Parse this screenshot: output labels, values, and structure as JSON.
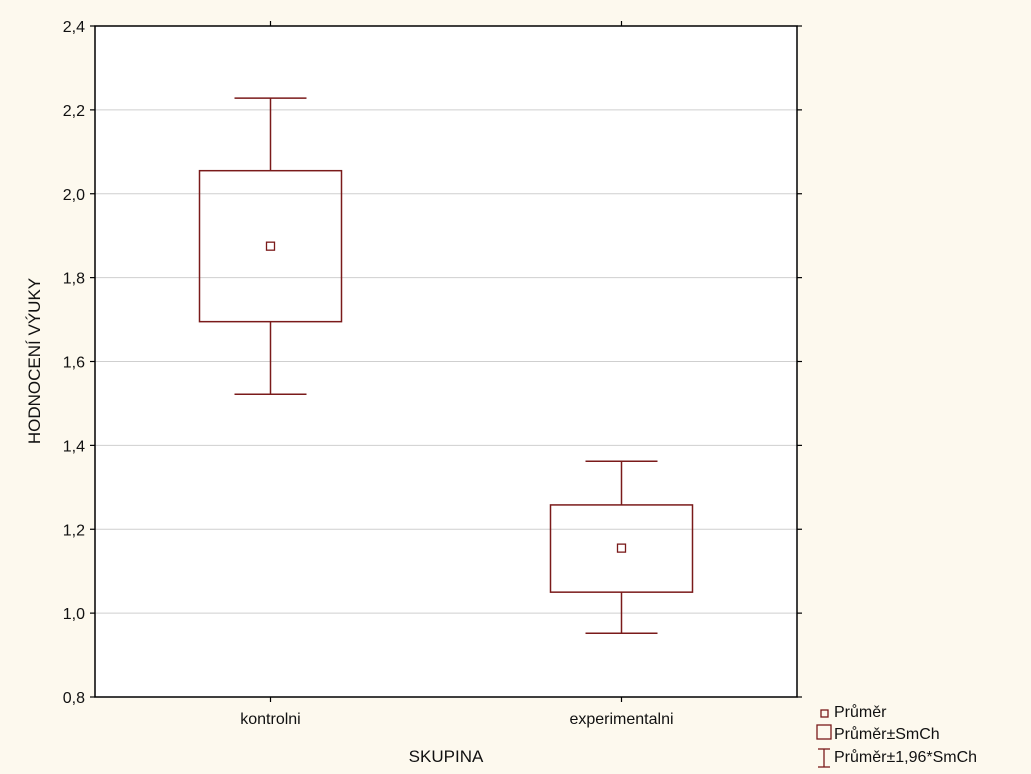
{
  "chart_data": {
    "type": "box",
    "xlabel": "SKUPINA",
    "ylabel": "HODNOCENÍ VÝUKY",
    "ylim": [
      0.8,
      2.4
    ],
    "y_ticks": [
      0.8,
      1.0,
      1.2,
      1.4,
      1.6,
      1.8,
      2.0,
      2.2,
      2.4
    ],
    "y_tick_labels": [
      "0,8",
      "1,0",
      "1,2",
      "1,4",
      "1,6",
      "1,8",
      "2,0",
      "2,2",
      "2,4"
    ],
    "grid": true,
    "categories": [
      "kontrolni",
      "experimentalni"
    ],
    "groups": [
      {
        "category": "kontrolni",
        "mean": 1.875,
        "mean_minus_se": 1.695,
        "mean_plus_se": 2.055,
        "mean_minus_1_96se": 1.522,
        "mean_plus_1_96se": 2.228
      },
      {
        "category": "experimentalni",
        "mean": 1.155,
        "mean_minus_se": 1.05,
        "mean_plus_se": 1.258,
        "mean_minus_1_96se": 0.952,
        "mean_plus_1_96se": 1.362
      }
    ],
    "legend": {
      "placement": "bottom-right",
      "items": [
        "Průměr",
        "Průměr±SmCh",
        "Průměr±1,96*SmCh"
      ]
    },
    "colors": {
      "box": "#7a1a1a",
      "grid": "#cfcfcf",
      "frame": "#000000"
    }
  }
}
